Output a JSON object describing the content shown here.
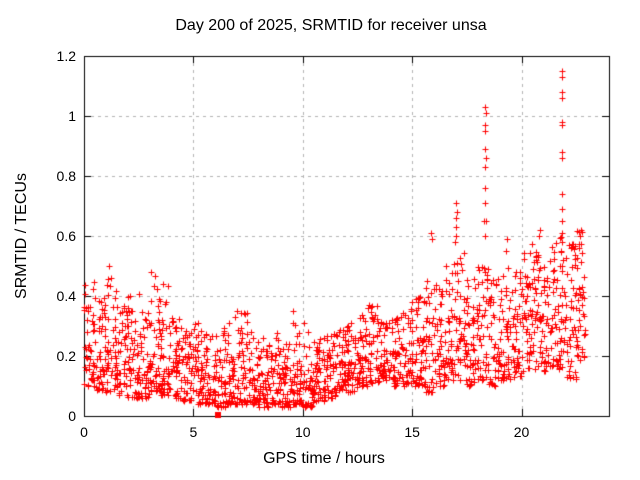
{
  "style": {
    "background": "#ffffff",
    "marker_color": "#ff0000",
    "grid_color": "#b3b3b3",
    "border_color": "#000000",
    "text_color": "#000000"
  },
  "chart_data": {
    "type": "scatter",
    "title": "Day 200 of 2025, SRMTID for receiver unsa",
    "xlabel": "GPS time / hours",
    "ylabel": "SRMTID / TECUs",
    "xlim": [
      0,
      24
    ],
    "ylim": [
      0,
      1.2
    ],
    "xticks": [
      0,
      5,
      10,
      15,
      20
    ],
    "xtick_labels": [
      "0",
      "5",
      "10",
      "15",
      "20"
    ],
    "yticks": [
      0,
      0.2,
      0.4,
      0.6,
      0.8,
      1.0,
      1.2
    ],
    "ytick_labels": [
      "0",
      "0.2",
      "0.4",
      "0.6",
      "0.8",
      "1",
      "1.2"
    ],
    "grid": true,
    "legend": false,
    "marker": "plus",
    "marker_size": 7,
    "seed": 20250720,
    "bin_format": [
      "x_start_hours",
      "x_end_hours",
      "n_points",
      "y_min",
      "y_max",
      "spread_exponent"
    ],
    "density_bins": [
      [
        0.0,
        0.5,
        46,
        0.1,
        0.45,
        1.7
      ],
      [
        0.5,
        1.0,
        46,
        0.08,
        0.4,
        1.7
      ],
      [
        1.0,
        1.5,
        46,
        0.08,
        0.5,
        1.8
      ],
      [
        1.5,
        2.0,
        46,
        0.07,
        0.38,
        1.7
      ],
      [
        2.0,
        2.5,
        46,
        0.06,
        0.42,
        1.8
      ],
      [
        2.5,
        3.0,
        46,
        0.06,
        0.35,
        1.7
      ],
      [
        3.0,
        3.5,
        46,
        0.08,
        0.48,
        1.8
      ],
      [
        3.5,
        4.0,
        46,
        0.07,
        0.44,
        1.9
      ],
      [
        4.0,
        4.5,
        44,
        0.06,
        0.35,
        1.9
      ],
      [
        4.5,
        5.0,
        44,
        0.05,
        0.3,
        1.8
      ],
      [
        5.0,
        5.5,
        44,
        0.04,
        0.32,
        2.0
      ],
      [
        5.5,
        6.0,
        44,
        0.04,
        0.28,
        1.9
      ],
      [
        6.0,
        6.5,
        44,
        0.03,
        0.3,
        2.0
      ],
      [
        6.5,
        7.0,
        44,
        0.04,
        0.33,
        2.0
      ],
      [
        7.0,
        7.5,
        44,
        0.04,
        0.35,
        2.0
      ],
      [
        7.5,
        8.0,
        44,
        0.04,
        0.28,
        1.9
      ],
      [
        8.0,
        8.5,
        44,
        0.03,
        0.26,
        1.9
      ],
      [
        8.5,
        9.0,
        44,
        0.04,
        0.28,
        1.9
      ],
      [
        9.0,
        9.5,
        44,
        0.03,
        0.26,
        1.9
      ],
      [
        9.5,
        10.0,
        44,
        0.04,
        0.33,
        2.0
      ],
      [
        10.0,
        10.5,
        44,
        0.03,
        0.3,
        1.9
      ],
      [
        10.5,
        11.0,
        44,
        0.05,
        0.26,
        1.7
      ],
      [
        11.0,
        11.5,
        44,
        0.06,
        0.28,
        1.6
      ],
      [
        11.5,
        12.0,
        44,
        0.08,
        0.3,
        1.5
      ],
      [
        12.0,
        12.5,
        44,
        0.08,
        0.32,
        1.5
      ],
      [
        12.5,
        13.0,
        44,
        0.1,
        0.34,
        1.4
      ],
      [
        13.0,
        13.5,
        44,
        0.1,
        0.37,
        1.5
      ],
      [
        13.5,
        14.0,
        44,
        0.12,
        0.33,
        1.4
      ],
      [
        14.0,
        14.5,
        44,
        0.1,
        0.34,
        1.4
      ],
      [
        14.5,
        15.0,
        44,
        0.1,
        0.36,
        1.5
      ],
      [
        15.0,
        15.5,
        44,
        0.1,
        0.4,
        1.5
      ],
      [
        15.5,
        16.0,
        44,
        0.08,
        0.46,
        1.6
      ],
      [
        16.0,
        16.5,
        44,
        0.1,
        0.44,
        1.5
      ],
      [
        16.5,
        17.0,
        44,
        0.12,
        0.52,
        1.5
      ],
      [
        17.0,
        17.5,
        44,
        0.12,
        0.55,
        1.4
      ],
      [
        17.5,
        18.0,
        44,
        0.1,
        0.46,
        1.5
      ],
      [
        18.0,
        18.5,
        44,
        0.12,
        0.5,
        1.5
      ],
      [
        18.5,
        19.0,
        44,
        0.1,
        0.48,
        1.5
      ],
      [
        19.0,
        19.5,
        44,
        0.12,
        0.5,
        1.4
      ],
      [
        19.5,
        20.0,
        44,
        0.12,
        0.5,
        1.4
      ],
      [
        20.0,
        20.5,
        46,
        0.15,
        0.55,
        1.2
      ],
      [
        20.5,
        21.0,
        46,
        0.15,
        0.58,
        1.2
      ],
      [
        21.0,
        21.5,
        46,
        0.15,
        0.58,
        1.2
      ],
      [
        21.5,
        22.0,
        46,
        0.15,
        0.6,
        1.2
      ],
      [
        22.0,
        22.5,
        46,
        0.12,
        0.58,
        1.3
      ],
      [
        22.5,
        22.9,
        40,
        0.18,
        0.62,
        1.2
      ]
    ],
    "outlier_points": [
      [
        1.12,
        0.5
      ],
      [
        3.05,
        0.48
      ],
      [
        3.6,
        0.44
      ],
      [
        6.9,
        0.33
      ],
      [
        7.0,
        0.35
      ],
      [
        9.55,
        0.35
      ],
      [
        10.05,
        0.31
      ],
      [
        13.0,
        0.36
      ],
      [
        15.88,
        0.61
      ],
      [
        15.9,
        0.59
      ],
      [
        16.97,
        0.58
      ],
      [
        17.0,
        0.6
      ],
      [
        17.02,
        0.63
      ],
      [
        16.99,
        0.66
      ],
      [
        17.05,
        0.68
      ],
      [
        17.0,
        0.71
      ],
      [
        18.3,
        0.65
      ],
      [
        18.35,
        0.6
      ],
      [
        18.36,
        0.65
      ],
      [
        18.34,
        0.71
      ],
      [
        18.35,
        0.76
      ],
      [
        18.33,
        0.83
      ],
      [
        18.36,
        0.86
      ],
      [
        18.35,
        0.89
      ],
      [
        18.34,
        0.95
      ],
      [
        18.35,
        0.97
      ],
      [
        18.36,
        1.01
      ],
      [
        18.35,
        1.03
      ],
      [
        19.3,
        0.55
      ],
      [
        19.32,
        0.59
      ],
      [
        20.8,
        0.6
      ],
      [
        20.85,
        0.62
      ],
      [
        21.84,
        0.58
      ],
      [
        21.86,
        0.61
      ],
      [
        21.85,
        0.65
      ],
      [
        21.83,
        0.69
      ],
      [
        21.87,
        0.74
      ],
      [
        21.85,
        0.86
      ],
      [
        21.86,
        0.88
      ],
      [
        21.84,
        0.97
      ],
      [
        21.85,
        0.98
      ],
      [
        21.86,
        1.06
      ],
      [
        21.85,
        1.08
      ],
      [
        21.87,
        1.13
      ],
      [
        21.85,
        1.15
      ],
      [
        22.65,
        0.56
      ],
      [
        22.68,
        0.6
      ],
      [
        22.7,
        0.62
      ]
    ],
    "square_point": [
      6.13,
      0.004
    ]
  }
}
